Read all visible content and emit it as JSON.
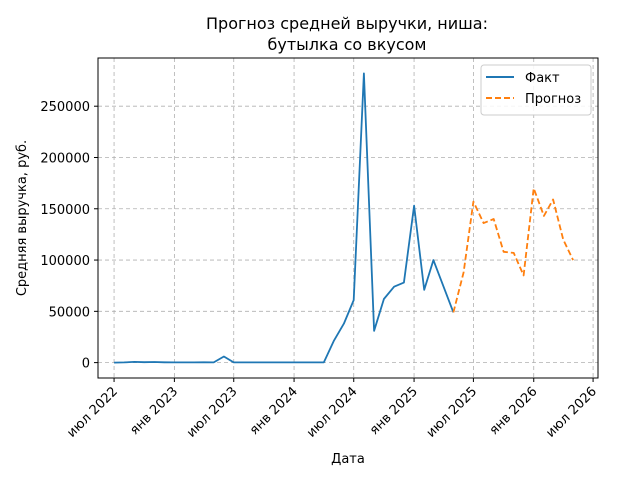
{
  "chart_data": {
    "type": "line",
    "title_lines": [
      "Прогноз средней выручки, ниша:",
      "бутылка со вкусом"
    ],
    "xlabel": "Дата",
    "ylabel": "Средняя выручка, руб.",
    "grid": true,
    "legend_position": "top-right",
    "ylim": [
      -15000,
      297000
    ],
    "xlim": [
      "2022-05-13",
      "2026-07-16"
    ],
    "y_ticks": [
      0,
      50000,
      100000,
      150000,
      200000,
      250000
    ],
    "y_tick_labels": [
      "0",
      "50000",
      "100000",
      "150000",
      "200000",
      "250000"
    ],
    "x_ticks": [
      "2022-07-01",
      "2023-01-01",
      "2023-07-01",
      "2024-01-01",
      "2024-07-01",
      "2025-01-01",
      "2025-07-01",
      "2026-01-01",
      "2026-07-01"
    ],
    "x_tick_labels": [
      "июл 2022",
      "янв 2023",
      "июл 2023",
      "янв 2024",
      "июл 2024",
      "янв 2025",
      "июл 2025",
      "янв 2026",
      "июл 2026"
    ],
    "series": [
      {
        "name": "Факт",
        "color": "#1f77b4",
        "style": "solid",
        "points": [
          {
            "x": "2022-07-01",
            "y": 0
          },
          {
            "x": "2022-08-01",
            "y": 200
          },
          {
            "x": "2022-09-01",
            "y": 700
          },
          {
            "x": "2022-10-01",
            "y": 400
          },
          {
            "x": "2022-11-01",
            "y": 600
          },
          {
            "x": "2022-12-01",
            "y": 300
          },
          {
            "x": "2023-01-01",
            "y": 200
          },
          {
            "x": "2023-02-01",
            "y": 200
          },
          {
            "x": "2023-03-01",
            "y": 200
          },
          {
            "x": "2023-04-01",
            "y": 300
          },
          {
            "x": "2023-05-01",
            "y": 200
          },
          {
            "x": "2023-06-01",
            "y": 6000
          },
          {
            "x": "2023-07-01",
            "y": 200
          },
          {
            "x": "2023-08-01",
            "y": 200
          },
          {
            "x": "2023-09-01",
            "y": 200
          },
          {
            "x": "2023-10-01",
            "y": 200
          },
          {
            "x": "2023-11-01",
            "y": 200
          },
          {
            "x": "2023-12-01",
            "y": 200
          },
          {
            "x": "2024-01-01",
            "y": 200
          },
          {
            "x": "2024-02-01",
            "y": 200
          },
          {
            "x": "2024-03-01",
            "y": 200
          },
          {
            "x": "2024-04-01",
            "y": 300
          },
          {
            "x": "2024-05-01",
            "y": 21000
          },
          {
            "x": "2024-06-01",
            "y": 38000
          },
          {
            "x": "2024-07-01",
            "y": 61000
          },
          {
            "x": "2024-08-01",
            "y": 282000
          },
          {
            "x": "2024-09-01",
            "y": 31000
          },
          {
            "x": "2024-10-01",
            "y": 62000
          },
          {
            "x": "2024-11-01",
            "y": 74000
          },
          {
            "x": "2024-12-01",
            "y": 78000
          },
          {
            "x": "2025-01-01",
            "y": 153000
          },
          {
            "x": "2025-02-01",
            "y": 71000
          },
          {
            "x": "2025-03-01",
            "y": 100000
          },
          {
            "x": "2025-05-01",
            "y": 49000
          }
        ]
      },
      {
        "name": "Прогноз",
        "color": "#ff7f0e",
        "style": "dashed",
        "points": [
          {
            "x": "2025-05-01",
            "y": 49000
          },
          {
            "x": "2025-06-01",
            "y": 88000
          },
          {
            "x": "2025-07-01",
            "y": 157000
          },
          {
            "x": "2025-08-01",
            "y": 136000
          },
          {
            "x": "2025-09-01",
            "y": 140000
          },
          {
            "x": "2025-10-01",
            "y": 108000
          },
          {
            "x": "2025-11-01",
            "y": 107000
          },
          {
            "x": "2025-12-01",
            "y": 85000
          },
          {
            "x": "2026-01-01",
            "y": 170000
          },
          {
            "x": "2026-02-01",
            "y": 143000
          },
          {
            "x": "2026-03-01",
            "y": 159000
          },
          {
            "x": "2026-04-01",
            "y": 120000
          },
          {
            "x": "2026-05-01",
            "y": 100000
          }
        ]
      }
    ]
  }
}
